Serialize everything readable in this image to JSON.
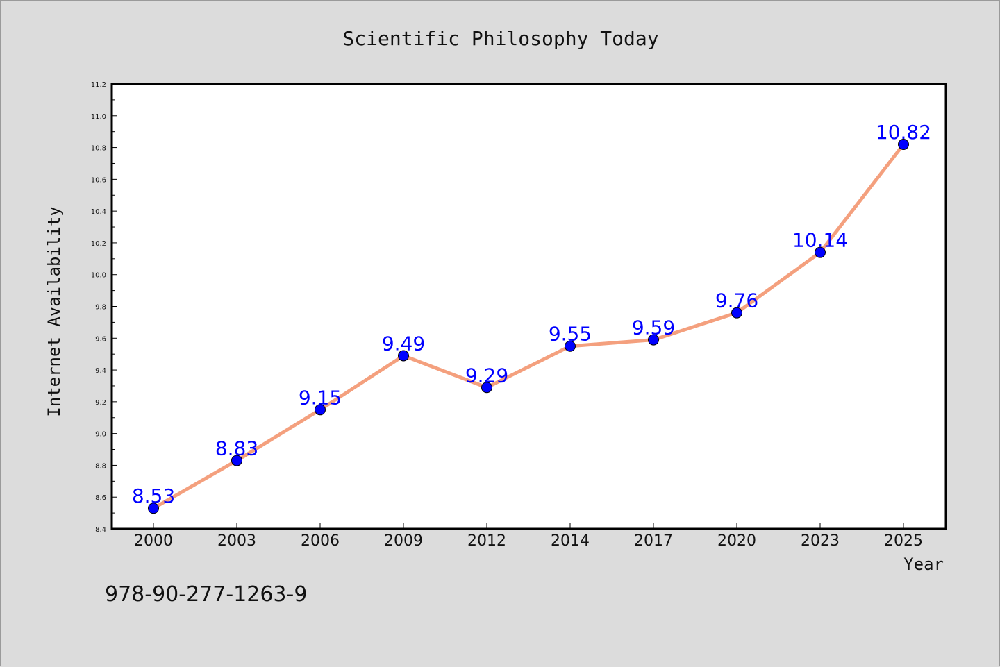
{
  "chart_data": {
    "type": "line",
    "title": "Scientific Philosophy Today",
    "xlabel": "Year",
    "ylabel": "Internet Availability",
    "categories": [
      "2000",
      "2003",
      "2006",
      "2009",
      "2012",
      "2014",
      "2017",
      "2020",
      "2023",
      "2025"
    ],
    "values": [
      8.53,
      8.83,
      9.15,
      9.49,
      9.29,
      9.55,
      9.59,
      9.76,
      10.14,
      10.82
    ],
    "data_labels": [
      "8.53",
      "8.83",
      "9.15",
      "9.49",
      "9.29",
      "9.55",
      "9.59",
      "9.76",
      "10.14",
      "10.82"
    ],
    "ylim": [
      8.4,
      11.2
    ],
    "yticks": [
      "8.4",
      "8.6",
      "8.8",
      "9.0",
      "9.2",
      "9.4",
      "9.6",
      "9.8",
      "10.0",
      "10.2",
      "10.4",
      "10.6",
      "10.8",
      "11.0",
      "11.2"
    ],
    "grid": false,
    "legend": "none",
    "colors": {
      "line": "#f4a07e",
      "marker": "#0000ff",
      "label": "#0000ff",
      "plot_bg": "#ffffff",
      "page_bg": "#dcdcdc"
    }
  },
  "footer_text": "978-90-277-1263-9"
}
